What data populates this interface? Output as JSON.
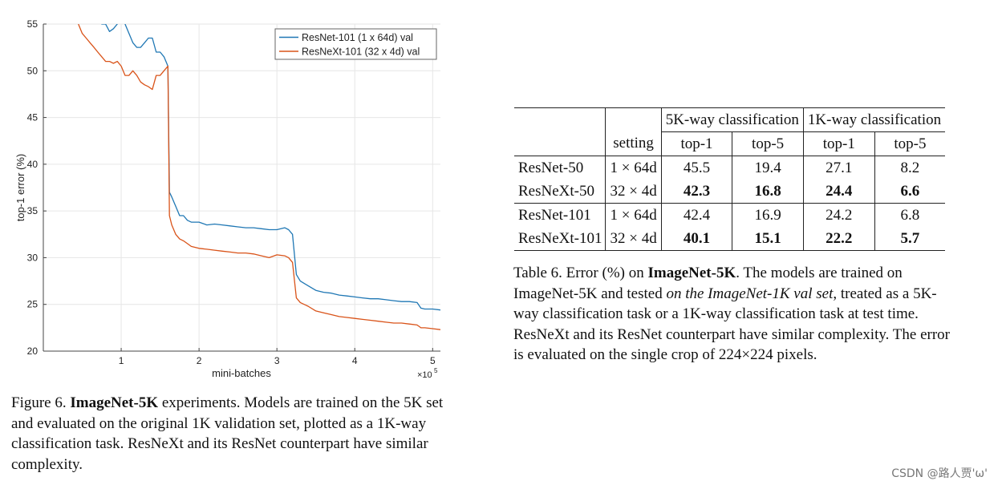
{
  "chart_data": {
    "type": "line",
    "ylabel": "top-1 error (%)",
    "xlabel": "mini-batches",
    "x_multiplier_label": "×10",
    "x_multiplier_exp": "5",
    "xlim": [
      0,
      5.1
    ],
    "ylim": [
      20,
      55
    ],
    "xticks": [
      1,
      2,
      3,
      4,
      5
    ],
    "yticks": [
      20,
      25,
      30,
      35,
      40,
      45,
      50,
      55
    ],
    "legend_position": "top-right",
    "series": [
      {
        "name": "ResNet-101 (1 x 64d) val",
        "color": "#1f77b4",
        "x": [
          0.45,
          0.5,
          0.55,
          0.6,
          0.65,
          0.7,
          0.75,
          0.8,
          0.85,
          0.9,
          0.95,
          1.0,
          1.05,
          1.1,
          1.15,
          1.2,
          1.25,
          1.3,
          1.35,
          1.4,
          1.45,
          1.5,
          1.55,
          1.6,
          1.62,
          1.65,
          1.7,
          1.75,
          1.8,
          1.85,
          1.9,
          2.0,
          2.1,
          2.2,
          2.3,
          2.4,
          2.5,
          2.6,
          2.7,
          2.8,
          2.9,
          3.0,
          3.1,
          3.15,
          3.2,
          3.25,
          3.3,
          3.4,
          3.5,
          3.6,
          3.7,
          3.8,
          3.9,
          4.0,
          4.1,
          4.2,
          4.3,
          4.4,
          4.5,
          4.6,
          4.7,
          4.8,
          4.85,
          4.9,
          5.0,
          5.1
        ],
        "y": [
          58,
          57,
          56.5,
          56,
          56,
          55.5,
          55,
          55,
          54.2,
          54.5,
          55,
          56,
          55,
          54,
          53,
          52.5,
          52.5,
          53,
          53.5,
          53.5,
          52,
          52,
          51.5,
          50.5,
          37,
          36.5,
          35.5,
          34.5,
          34.5,
          34,
          33.8,
          33.8,
          33.5,
          33.6,
          33.5,
          33.4,
          33.3,
          33.2,
          33.2,
          33.1,
          33,
          33,
          33.2,
          33,
          32.5,
          28.2,
          27.5,
          27,
          26.5,
          26.3,
          26.2,
          26,
          25.9,
          25.8,
          25.7,
          25.6,
          25.6,
          25.5,
          25.4,
          25.3,
          25.3,
          25.2,
          24.6,
          24.5,
          24.5,
          24.4
        ]
      },
      {
        "name": "ResNeXt-101 (32 x 4d) val",
        "color": "#d95319",
        "x": [
          0.45,
          0.5,
          0.55,
          0.6,
          0.65,
          0.7,
          0.75,
          0.8,
          0.85,
          0.9,
          0.95,
          1.0,
          1.05,
          1.1,
          1.15,
          1.2,
          1.25,
          1.3,
          1.35,
          1.4,
          1.45,
          1.5,
          1.55,
          1.6,
          1.62,
          1.65,
          1.7,
          1.75,
          1.8,
          1.85,
          1.9,
          2.0,
          2.1,
          2.2,
          2.3,
          2.4,
          2.5,
          2.6,
          2.7,
          2.8,
          2.9,
          3.0,
          3.1,
          3.15,
          3.2,
          3.25,
          3.3,
          3.4,
          3.5,
          3.6,
          3.7,
          3.8,
          3.9,
          4.0,
          4.1,
          4.2,
          4.3,
          4.4,
          4.5,
          4.6,
          4.7,
          4.8,
          4.85,
          4.9,
          5.0,
          5.1
        ],
        "y": [
          55,
          54,
          53.5,
          53,
          52.5,
          52,
          51.5,
          51,
          51,
          50.8,
          51,
          50.5,
          49.5,
          49.5,
          50,
          49.5,
          48.8,
          48.5,
          48.3,
          48,
          49.5,
          49.5,
          50,
          50.5,
          34.5,
          33.5,
          32.5,
          32,
          31.8,
          31.5,
          31.2,
          31,
          30.9,
          30.8,
          30.7,
          30.6,
          30.5,
          30.5,
          30.4,
          30.2,
          30,
          30.3,
          30.2,
          30,
          29.5,
          25.7,
          25.2,
          24.8,
          24.3,
          24.1,
          23.9,
          23.7,
          23.6,
          23.5,
          23.4,
          23.3,
          23.2,
          23.1,
          23,
          23,
          22.9,
          22.8,
          22.5,
          22.5,
          22.4,
          22.3
        ]
      }
    ]
  },
  "figure_caption": {
    "label": "Figure 6.",
    "bold": "ImageNet-5K",
    "text": " experiments.  Models are trained on the 5K set and evaluated on the original 1K validation set, plotted as a 1K-way classification task. ResNeXt and its ResNet counterpart have similar complexity."
  },
  "table": {
    "col_setting": "setting",
    "group_5k": "5K-way classification",
    "group_1k": "1K-way classification",
    "sub_headers": [
      "top-1",
      "top-5",
      "top-1",
      "top-5"
    ],
    "rows": [
      {
        "model": "ResNet-50",
        "setting": "1 × 64d",
        "v": [
          "45.5",
          "19.4",
          "27.1",
          "8.2"
        ],
        "bold": false
      },
      {
        "model": "ResNeXt-50",
        "setting": "32 × 4d",
        "v": [
          "42.3",
          "16.8",
          "24.4",
          "6.6"
        ],
        "bold": true
      },
      {
        "model": "ResNet-101",
        "setting": "1 × 64d",
        "v": [
          "42.4",
          "16.9",
          "24.2",
          "6.8"
        ],
        "bold": false
      },
      {
        "model": "ResNeXt-101",
        "setting": "32 × 4d",
        "v": [
          "40.1",
          "15.1",
          "22.2",
          "5.7"
        ],
        "bold": true
      }
    ]
  },
  "table_caption": {
    "label": "Table 6. Error (%) on ",
    "bold": "ImageNet-5K",
    "text1": ". The models are trained on ImageNet-5K and tested ",
    "italic": "on the ImageNet-1K val set",
    "text2": ", treated as a 5K-way classification task or a 1K-way classification task at test time. ResNeXt and its ResNet counterpart have similar complexity. The error is evaluated on the single crop of 224×224 pixels."
  },
  "watermark": "CSDN @路人贾'ω'"
}
